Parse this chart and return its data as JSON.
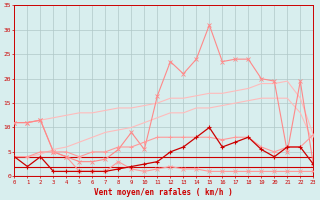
{
  "x": [
    0,
    1,
    2,
    3,
    4,
    5,
    6,
    7,
    8,
    9,
    10,
    11,
    12,
    13,
    14,
    15,
    16,
    17,
    18,
    19,
    20,
    21,
    22,
    23
  ],
  "line_flat0_y": [
    0,
    0,
    0,
    0,
    0,
    0,
    0,
    0,
    0,
    0,
    0,
    0,
    0,
    0,
    0,
    0,
    0,
    0,
    0,
    0,
    0,
    0,
    0,
    0
  ],
  "line_flat4_y": [
    4,
    4,
    4,
    4,
    4,
    4,
    4,
    4,
    4,
    4,
    4,
    4,
    4,
    4,
    4,
    4,
    4,
    4,
    4,
    4,
    4,
    4,
    4,
    4
  ],
  "line_flat1_y": [
    2,
    2,
    2,
    2,
    2,
    2,
    2,
    2,
    2,
    2,
    2,
    2,
    2,
    2,
    2,
    2,
    2,
    2,
    2,
    2,
    2,
    2,
    2,
    2
  ],
  "line_pale_lower": [
    4,
    4,
    4.5,
    5.5,
    6,
    7,
    8,
    9,
    9.5,
    10,
    11,
    12,
    13,
    13,
    14,
    14,
    14.5,
    15,
    15.5,
    16,
    16,
    16,
    13,
    7
  ],
  "line_pale_upper": [
    11,
    11,
    11.5,
    12,
    12.5,
    13,
    13,
    13.5,
    14,
    14,
    14.5,
    15,
    16,
    16,
    16.5,
    17,
    17,
    17.5,
    18,
    19,
    19,
    19.5,
    16,
    8.5
  ],
  "line_pink_drop": [
    11,
    11,
    11.5,
    5,
    4,
    1,
    1,
    1,
    3,
    1.5,
    1,
    1.5,
    2,
    1.5,
    1.5,
    1,
    1,
    1,
    1,
    1,
    1,
    1,
    1,
    1
  ],
  "line_pink_peak": [
    11,
    11,
    11.5,
    5,
    4,
    3,
    3,
    3.5,
    5.5,
    9,
    5.5,
    16.5,
    23.5,
    21,
    24,
    31,
    23.5,
    24,
    24,
    20,
    19.5,
    5,
    19.5,
    2.5
  ],
  "line_dark_main": [
    4,
    2,
    4,
    1,
    1,
    1,
    1,
    1,
    1.5,
    2,
    2.5,
    3,
    5,
    6,
    8,
    10,
    6,
    7,
    8,
    5.5,
    4,
    6,
    6,
    2.5
  ],
  "line_mid_bumpy": [
    4,
    4,
    5,
    5,
    5,
    4,
    5,
    5,
    6,
    6,
    7,
    8,
    8,
    8,
    8,
    8,
    7.5,
    8,
    8,
    6,
    5,
    6,
    6,
    8.5
  ],
  "bg_color": "#d8eeee",
  "grid_color": "#b0c8c8",
  "color_darkred": "#cc0000",
  "color_brightpink": "#ff8888",
  "color_palepink": "#ffbbbb",
  "color_mediumpink": "#ff9999",
  "xlabel": "Vent moyen/en rafales ( km/h )",
  "xlim": [
    0,
    23
  ],
  "ylim": [
    0,
    35
  ],
  "yticks": [
    0,
    5,
    10,
    15,
    20,
    25,
    30,
    35
  ],
  "xticks": [
    0,
    1,
    2,
    3,
    4,
    5,
    6,
    7,
    8,
    9,
    10,
    11,
    12,
    13,
    14,
    15,
    16,
    17,
    18,
    19,
    20,
    21,
    22,
    23
  ]
}
